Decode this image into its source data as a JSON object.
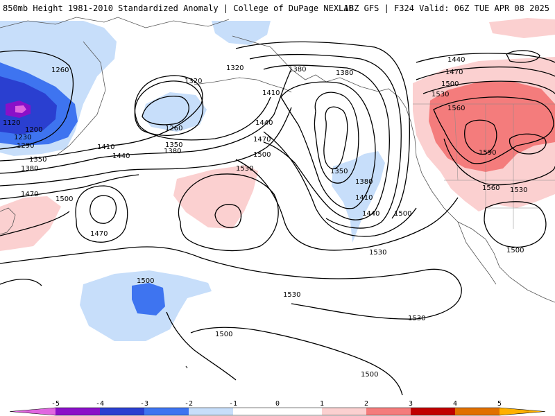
{
  "header": {
    "title": "850mb Height 1981-2010 Standardized Anomaly | College of DuPage NEXLAB",
    "run_info": "18Z GFS | F324 Valid: 06Z TUE APR 08 2025"
  },
  "colors": {
    "anom_n5": "#e066e0",
    "anom_n4": "#8a10c8",
    "anom_n3": "#2a3fd0",
    "anom_n2": "#3e74f0",
    "anom_n1": "#c7defa",
    "anom_p1": "#fbd0d0",
    "anom_p2": "#f47c7c",
    "anom_p3": "#c00000",
    "anom_p4": "#e07000",
    "anom_p5": "#ffb000"
  },
  "colorbar": {
    "ticks": [
      "-5",
      "-4",
      "-3",
      "-2",
      "-1",
      "0",
      "1",
      "2",
      "3",
      "4",
      "5"
    ]
  },
  "contour_labels": [
    {
      "id": "c1260a",
      "text": "1260"
    },
    {
      "id": "c1120",
      "text": "1120"
    },
    {
      "id": "c1200",
      "text": "1200"
    },
    {
      "id": "c1230",
      "text": "1230"
    },
    {
      "id": "c1290",
      "text": "1290"
    },
    {
      "id": "c1350a",
      "text": "1350"
    },
    {
      "id": "c1380a",
      "text": "1380"
    },
    {
      "id": "c1470a",
      "text": "1470"
    },
    {
      "id": "c1500a",
      "text": "1500"
    },
    {
      "id": "c1410a",
      "text": "1410"
    },
    {
      "id": "c1440a",
      "text": "1440"
    },
    {
      "id": "c1320a",
      "text": "1320"
    },
    {
      "id": "c1320b",
      "text": "1320"
    },
    {
      "id": "c1260b",
      "text": "1260"
    },
    {
      "id": "c1350b",
      "text": "1350"
    },
    {
      "id": "c1380b",
      "text": "1380"
    },
    {
      "id": "c1410b",
      "text": "1410"
    },
    {
      "id": "c1440b",
      "text": "1440"
    },
    {
      "id": "c1470b",
      "text": "1470"
    },
    {
      "id": "c1500b",
      "text": "1500"
    },
    {
      "id": "c1530a",
      "text": "1530"
    },
    {
      "id": "c1470c",
      "text": "1470"
    },
    {
      "id": "c1380c",
      "text": "1380"
    },
    {
      "id": "c1380d",
      "text": "1380"
    },
    {
      "id": "c1350c",
      "text": "1350"
    },
    {
      "id": "c1380e",
      "text": "1380"
    },
    {
      "id": "c1410c",
      "text": "1410"
    },
    {
      "id": "c1440c",
      "text": "1440"
    },
    {
      "id": "c1500c",
      "text": "1500"
    },
    {
      "id": "c1530b",
      "text": "1530"
    },
    {
      "id": "c1440d",
      "text": "1440"
    },
    {
      "id": "c1470d",
      "text": "1470"
    },
    {
      "id": "c1500d",
      "text": "1500"
    },
    {
      "id": "c1530c",
      "text": "1530"
    },
    {
      "id": "c1560a",
      "text": "1560"
    },
    {
      "id": "c1590",
      "text": "1590"
    },
    {
      "id": "c1560b",
      "text": "1560"
    },
    {
      "id": "c1530d",
      "text": "1530"
    },
    {
      "id": "c1500e",
      "text": "1500"
    },
    {
      "id": "c1500f",
      "text": "1500"
    },
    {
      "id": "c1530e",
      "text": "1530"
    },
    {
      "id": "c1530f",
      "text": "1530"
    },
    {
      "id": "c1500g",
      "text": "1500"
    },
    {
      "id": "c1500h",
      "text": "1500"
    }
  ]
}
